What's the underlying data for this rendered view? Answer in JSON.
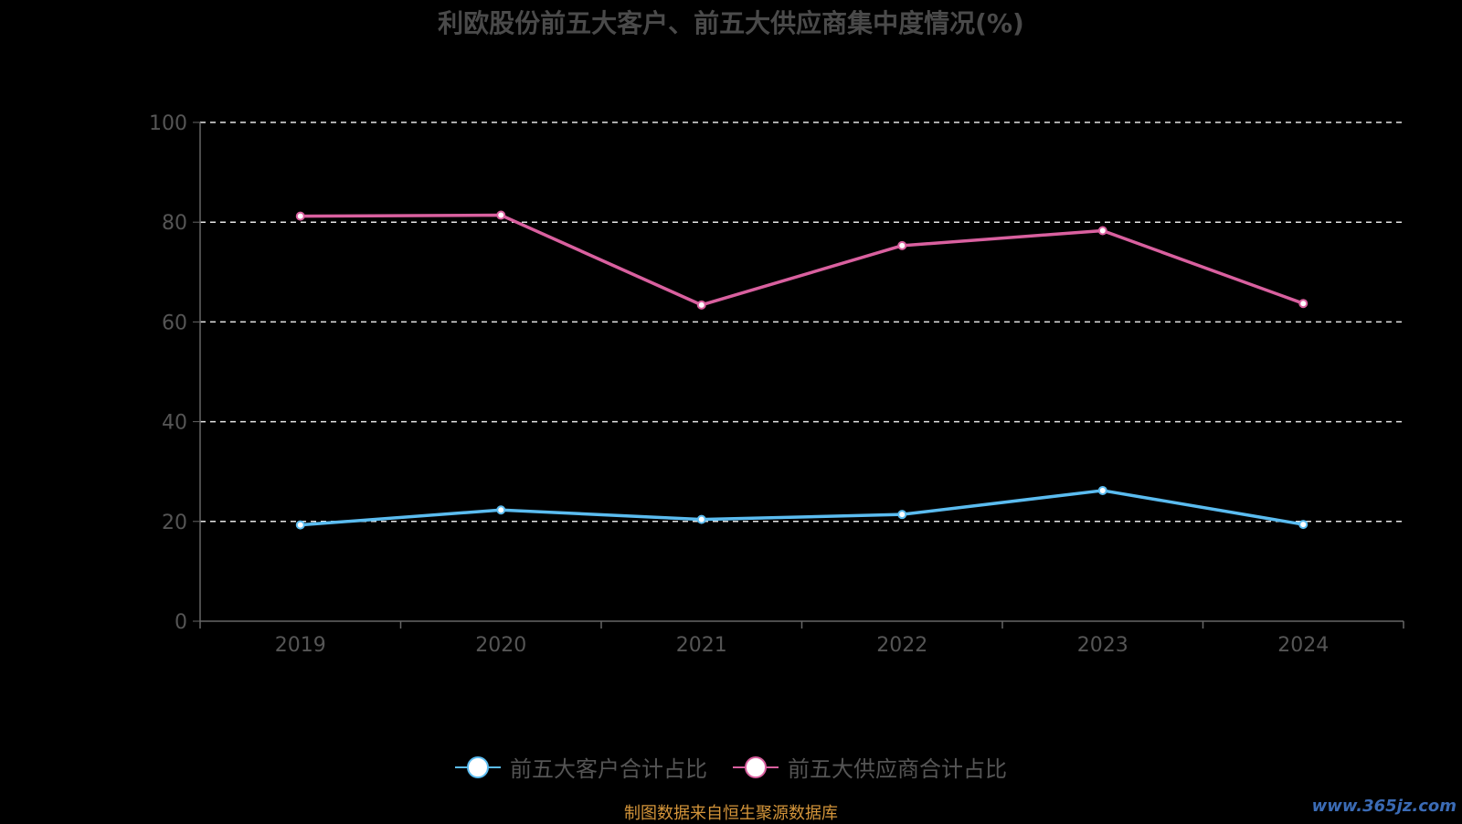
{
  "chart_data": {
    "type": "line",
    "title": "利欧股份前五大客户、前五大供应商集中度情况(%)",
    "categories": [
      "2019",
      "2020",
      "2021",
      "2022",
      "2023",
      "2024"
    ],
    "series": [
      {
        "name": "前五大客户合计占比",
        "values": [
          19.3,
          22.3,
          20.4,
          21.4,
          26.2,
          19.4
        ],
        "color": "#5bbcf0"
      },
      {
        "name": "前五大供应商合计占比",
        "values": [
          81.2,
          81.4,
          63.4,
          75.3,
          78.3,
          63.7
        ],
        "color": "#d9609f"
      }
    ],
    "ylim": [
      0,
      100
    ],
    "yticks": [
      0,
      20,
      40,
      60,
      80,
      100
    ],
    "grid": true,
    "legend_position": "bottom"
  },
  "footer": {
    "source_note": "制图数据来自恒生聚源数据库",
    "watermark": "www.365jz.com"
  }
}
